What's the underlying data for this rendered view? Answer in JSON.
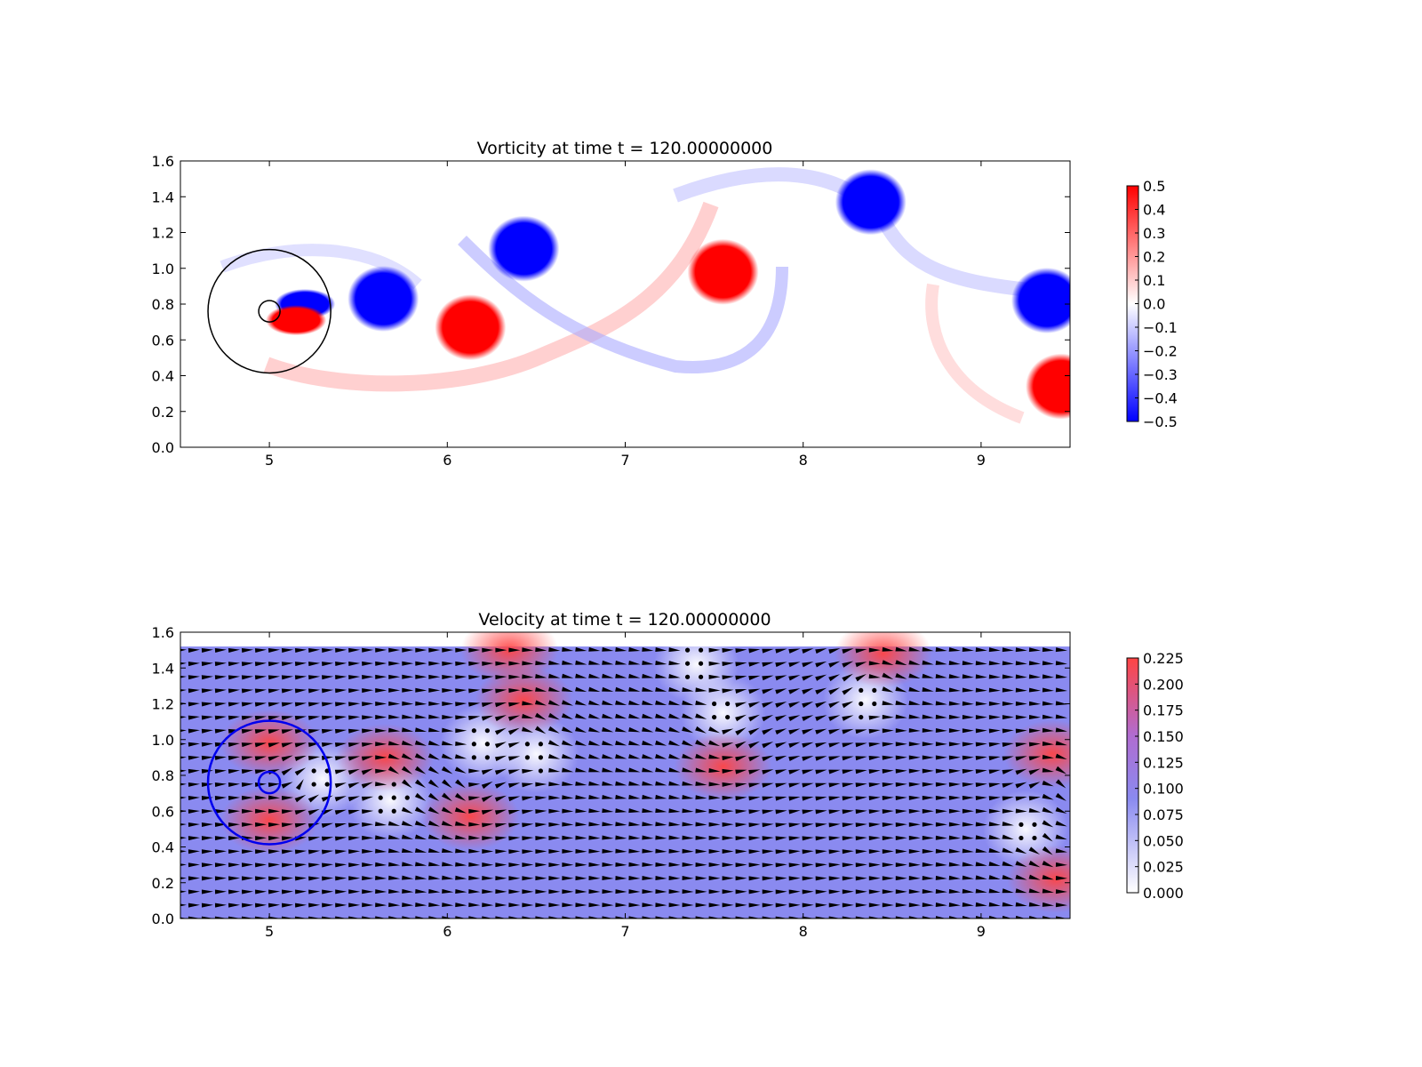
{
  "chart_data": [
    {
      "type": "heatmap",
      "title": "Vorticity at time t =   120.00000000",
      "xlabel": "",
      "ylabel": "",
      "xlim": [
        4.5,
        9.5
      ],
      "ylim": [
        0.0,
        1.6
      ],
      "xticks": [
        "5",
        "6",
        "7",
        "8",
        "9"
      ],
      "yticks": [
        "0.0",
        "0.2",
        "0.4",
        "0.6",
        "0.8",
        "1.0",
        "1.2",
        "1.4",
        "1.6"
      ],
      "colormap": "bwr",
      "colors": {
        "positive": "#ff0000",
        "negative": "#0000ff",
        "zero": "#ffffff"
      },
      "colorbar": {
        "range": [
          -0.5,
          0.5
        ],
        "ticks": [
          "0.5",
          "0.4",
          "0.3",
          "0.2",
          "0.1",
          "0.0",
          "−0.1",
          "−0.2",
          "−0.3",
          "−0.4",
          "−0.5"
        ]
      },
      "vortices": [
        {
          "x": 5.2,
          "y": 0.8,
          "sign": -1
        },
        {
          "x": 5.15,
          "y": 0.71,
          "sign": 1
        },
        {
          "x": 5.64,
          "y": 0.83,
          "sign": -1
        },
        {
          "x": 6.13,
          "y": 0.67,
          "sign": 1
        },
        {
          "x": 6.43,
          "y": 1.11,
          "sign": -1
        },
        {
          "x": 7.55,
          "y": 0.98,
          "sign": 1
        },
        {
          "x": 8.38,
          "y": 1.37,
          "sign": -1
        },
        {
          "x": 9.37,
          "y": 0.82,
          "sign": -1
        },
        {
          "x": 9.45,
          "y": 0.34,
          "sign": 1
        }
      ],
      "circles": [
        {
          "cx": 5.0,
          "cy": 0.76,
          "r": 0.345,
          "color": "#000000"
        },
        {
          "cx": 5.0,
          "cy": 0.76,
          "r": 0.06,
          "color": "#000000"
        }
      ]
    },
    {
      "type": "heatmap",
      "title": "Velocity at time t =   120.00000000",
      "xlabel": "",
      "ylabel": "",
      "xlim": [
        4.5,
        9.5
      ],
      "ylim": [
        0.0,
        1.6
      ],
      "xticks": [
        "5",
        "6",
        "7",
        "8",
        "9"
      ],
      "yticks": [
        "0.0",
        "0.2",
        "0.4",
        "0.6",
        "0.8",
        "1.0",
        "1.2",
        "1.4",
        "1.6"
      ],
      "field_ymax": 1.52,
      "background_speed": 0.09,
      "colors": {
        "low": "#ffffff",
        "mid": "#8a8af0",
        "high": "#ff4444",
        "arrow": "#000000"
      },
      "colorbar": {
        "range": [
          0.0,
          0.225
        ],
        "ticks": [
          "0.225",
          "0.200",
          "0.175",
          "0.150",
          "0.125",
          "0.100",
          "0.075",
          "0.050",
          "0.025",
          "0.000"
        ]
      },
      "fast_regions": [
        {
          "x": 5.0,
          "y": 0.55,
          "speed": 0.17
        },
        {
          "x": 5.0,
          "y": 0.98,
          "speed": 0.16
        },
        {
          "x": 5.65,
          "y": 0.9,
          "speed": 0.2
        },
        {
          "x": 6.13,
          "y": 0.57,
          "speed": 0.22
        },
        {
          "x": 6.43,
          "y": 1.22,
          "speed": 0.22
        },
        {
          "x": 6.35,
          "y": 1.5,
          "speed": 0.18
        },
        {
          "x": 7.55,
          "y": 0.85,
          "speed": 0.22
        },
        {
          "x": 8.45,
          "y": 1.48,
          "speed": 0.23
        },
        {
          "x": 9.4,
          "y": 0.92,
          "speed": 0.22
        },
        {
          "x": 9.42,
          "y": 0.22,
          "speed": 0.21
        }
      ],
      "slow_regions": [
        {
          "x": 5.3,
          "y": 0.78
        },
        {
          "x": 5.68,
          "y": 0.66
        },
        {
          "x": 6.2,
          "y": 0.98
        },
        {
          "x": 6.5,
          "y": 0.92
        },
        {
          "x": 7.4,
          "y": 1.42
        },
        {
          "x": 7.55,
          "y": 1.15
        },
        {
          "x": 8.35,
          "y": 1.22
        },
        {
          "x": 9.25,
          "y": 0.5
        }
      ],
      "circles": [
        {
          "cx": 5.0,
          "cy": 0.76,
          "r": 0.345,
          "color": "#0000ee"
        },
        {
          "cx": 5.0,
          "cy": 0.76,
          "r": 0.06,
          "color": "#0000ee"
        }
      ]
    }
  ]
}
